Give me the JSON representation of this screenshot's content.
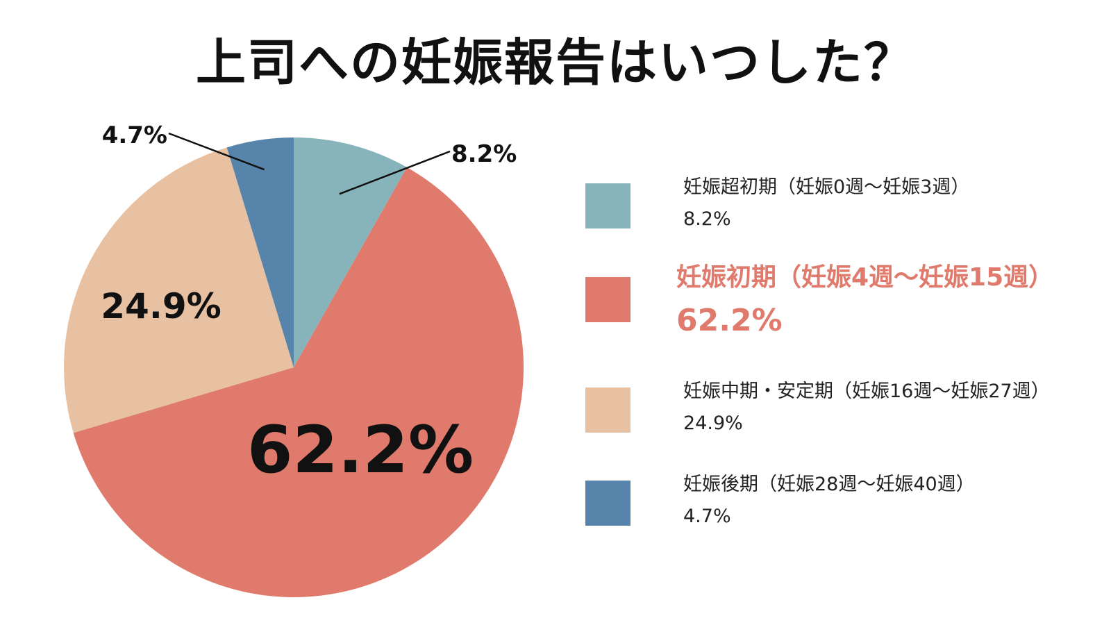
{
  "chart_data": {
    "type": "pie",
    "title": "上司への妊娠報告はいつした？",
    "slices": [
      {
        "label": "妊娠超初期（妊娠0週〜妊娠3週）",
        "value": 8.2,
        "display": "8.2%",
        "color": "#87B3BA"
      },
      {
        "label": "妊娠初期（妊娠4週〜妊娠15週）",
        "value": 62.2,
        "display": "62.2%",
        "color": "#DF7A6C"
      },
      {
        "label": "妊娠中期・安定期（妊娠16週〜妊娠27週）",
        "value": 24.9,
        "display": "24.9%",
        "color": "#E7C1A2"
      },
      {
        "label": "妊娠後期（妊娠28週〜妊娠40週）",
        "value": 4.7,
        "display": "4.7%",
        "color": "#5684AA"
      }
    ],
    "highlight_index": 1,
    "highlight_text_color": "#DF7A6C",
    "legend_position": "right"
  }
}
